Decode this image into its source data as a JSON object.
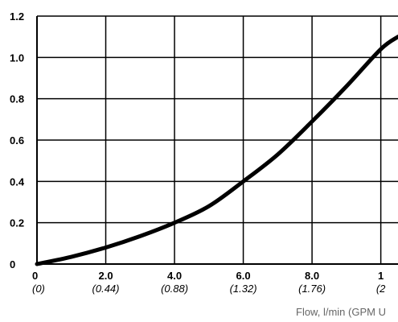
{
  "chart_data": {
    "type": "line",
    "xlabel": "Flow, l/min (GPM U",
    "xlim": [
      0,
      10.5
    ],
    "ylim": [
      0,
      1.2
    ],
    "x_ticks": [
      {
        "value": 0,
        "label": "0",
        "sub": "(0)"
      },
      {
        "value": 2,
        "label": "2.0",
        "sub": "(0.44)"
      },
      {
        "value": 4,
        "label": "4.0",
        "sub": "(0.88)"
      },
      {
        "value": 6,
        "label": "6.0",
        "sub": "(1.32)"
      },
      {
        "value": 8,
        "label": "8.0",
        "sub": "(1.76)"
      },
      {
        "value": 10,
        "label": "1",
        "sub": "(2"
      }
    ],
    "y_ticks": [
      {
        "value": 0,
        "label": "0"
      },
      {
        "value": 0.2,
        "label": "0.2"
      },
      {
        "value": 0.4,
        "label": "0.4"
      },
      {
        "value": 0.6,
        "label": "0.6"
      },
      {
        "value": 0.8,
        "label": "0.8"
      },
      {
        "value": 1.0,
        "label": "1.0"
      },
      {
        "value": 1.2,
        "label": "1.2"
      }
    ],
    "grid": true,
    "series": [
      {
        "color": "#000000",
        "x": [
          0,
          1,
          2,
          3,
          4,
          5,
          6,
          7,
          8,
          9,
          10,
          10.5
        ],
        "y": [
          0,
          0.035,
          0.08,
          0.135,
          0.2,
          0.28,
          0.4,
          0.53,
          0.69,
          0.86,
          1.04,
          1.1
        ]
      }
    ]
  }
}
